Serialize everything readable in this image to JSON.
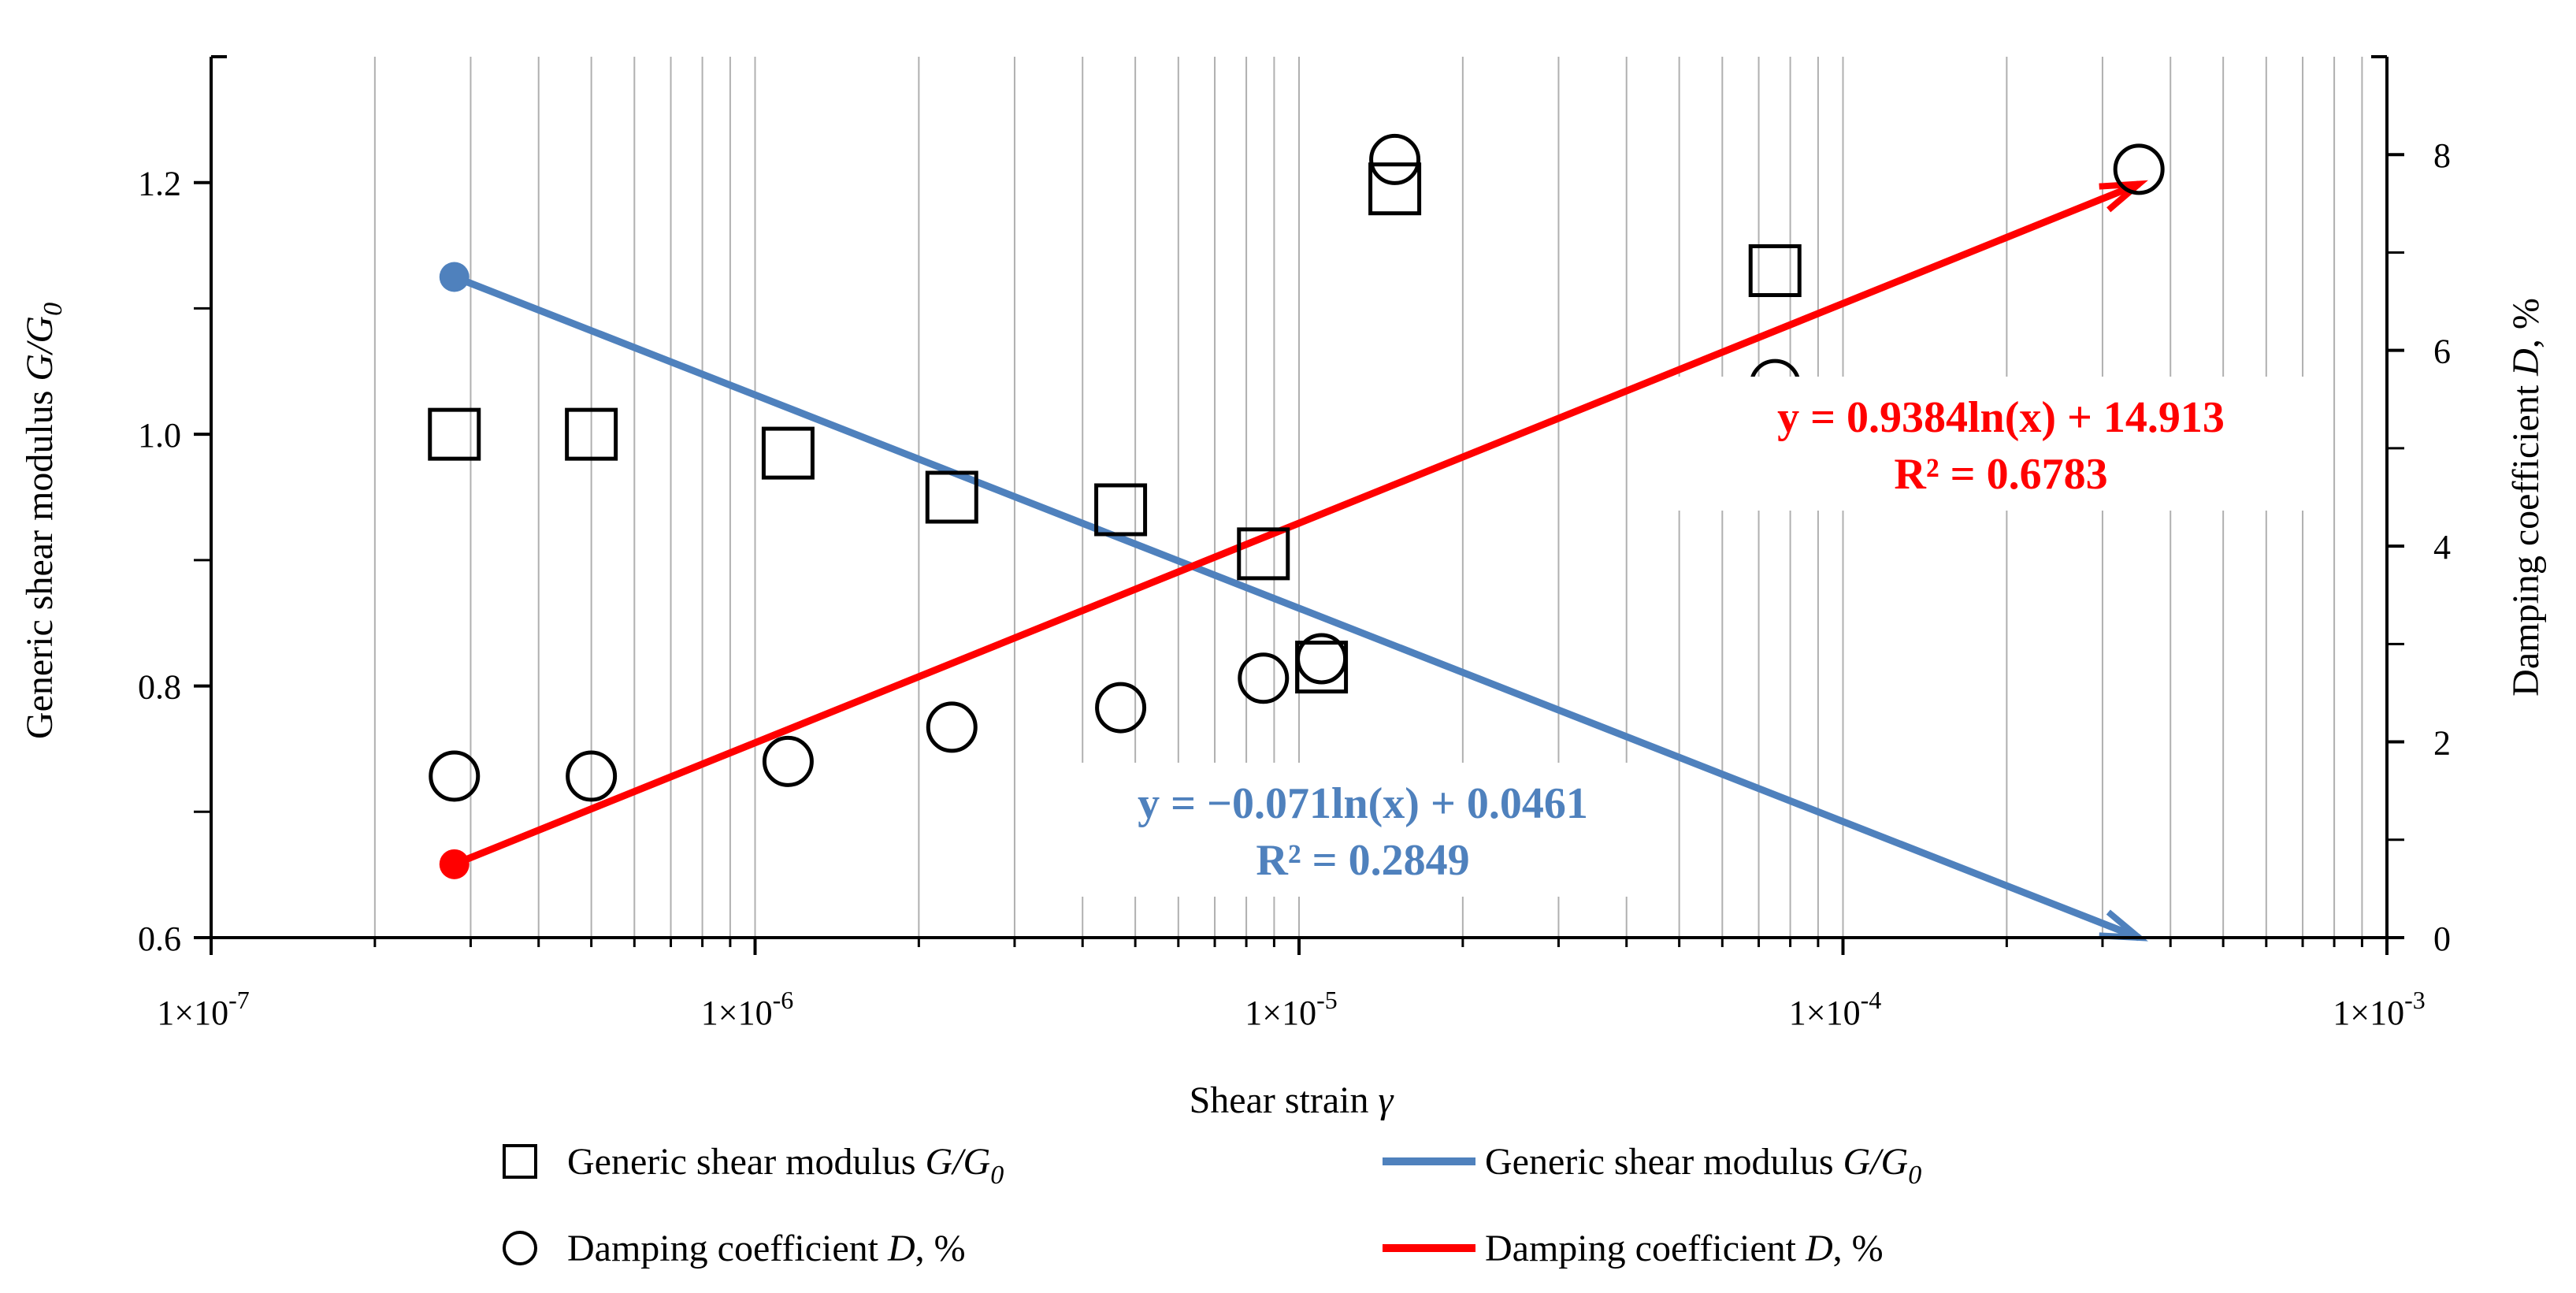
{
  "chart_data": {
    "type": "scatter",
    "title": "",
    "xlabel": "Shear strain",
    "xlabel_symbol": "γ",
    "x_scale": "log",
    "xlim": [
      1e-07,
      0.001
    ],
    "x_tick_labels": [
      {
        "value": 1e-07,
        "base": "1×10",
        "exp": "-7"
      },
      {
        "value": 1e-06,
        "base": "1×10",
        "exp": "-6"
      },
      {
        "value": 1e-05,
        "base": "1×10",
        "exp": "-5"
      },
      {
        "value": 0.0001,
        "base": "1×10",
        "exp": "-4"
      },
      {
        "value": 0.001,
        "base": "1×10",
        "exp": "-3"
      }
    ],
    "y_left": {
      "label": "Generic shear modulus",
      "label_symbol": "G/G",
      "label_sub": "0",
      "ylim": [
        0.6,
        1.3
      ],
      "tick_labels": [
        {
          "value": 0.6,
          "label": "0.6"
        },
        {
          "value": 0.8,
          "label": "0.8"
        },
        {
          "value": 1.0,
          "label": "1.0"
        },
        {
          "value": 1.2,
          "label": "1.2"
        }
      ],
      "minor_ticks": [
        0.7,
        0.9,
        1.1
      ]
    },
    "y_right": {
      "label": "Damping coefficient",
      "label_symbol": "D",
      "label_suffix": ", %",
      "ylim": [
        0,
        9
      ],
      "tick_labels": [
        {
          "value": 0,
          "label": "0"
        },
        {
          "value": 2,
          "label": "2"
        },
        {
          "value": 4,
          "label": "4"
        },
        {
          "value": 6,
          "label": "6"
        },
        {
          "value": 8,
          "label": "8"
        }
      ],
      "minor_ticks": [
        1,
        3,
        5,
        7
      ]
    },
    "series": [
      {
        "name": "Generic shear modulus G/G0",
        "kind": "points",
        "marker": "square",
        "axis": "left",
        "points": [
          {
            "x": 2.8e-07,
            "y": 1.0
          },
          {
            "x": 5e-07,
            "y": 1.0
          },
          {
            "x": 1.15e-06,
            "y": 0.985
          },
          {
            "x": 2.3e-06,
            "y": 0.95
          },
          {
            "x": 4.7e-06,
            "y": 0.94
          },
          {
            "x": 8.6e-06,
            "y": 0.905
          },
          {
            "x": 1.1e-05,
            "y": 0.815
          },
          {
            "x": 1.5e-05,
            "y": 1.195
          },
          {
            "x": 7.5e-05,
            "y": 1.13
          }
        ]
      },
      {
        "name": "Damping coefficient D, %",
        "kind": "points",
        "marker": "circle",
        "axis": "right",
        "points": [
          {
            "x": 2.8e-07,
            "y": 1.65
          },
          {
            "x": 5e-07,
            "y": 1.65
          },
          {
            "x": 1.15e-06,
            "y": 1.8
          },
          {
            "x": 2.3e-06,
            "y": 2.15
          },
          {
            "x": 4.7e-06,
            "y": 2.35
          },
          {
            "x": 8.6e-06,
            "y": 2.65
          },
          {
            "x": 1.1e-05,
            "y": 2.85
          },
          {
            "x": 1.5e-05,
            "y": 7.95
          },
          {
            "x": 7.5e-05,
            "y": 5.65
          },
          {
            "x": 0.00035,
            "y": 7.85
          }
        ]
      },
      {
        "name": "Generic shear modulus G/G0",
        "kind": "trend",
        "axis": "left",
        "color": "#4f81bd",
        "x_range": [
          2.8e-07,
          0.00035
        ],
        "y_range": [
          1.125,
          0.6
        ]
      },
      {
        "name": "Damping coefficient D, %",
        "kind": "trend",
        "axis": "right",
        "color": "#ff0000",
        "x_range": [
          2.8e-07,
          0.00035
        ],
        "y_range": [
          0.75,
          7.7
        ]
      }
    ],
    "annotations": [
      {
        "id": "blue-eq",
        "line1": "y = −0.071ln(x) + 0.0461",
        "line2": "R² = 0.2849",
        "color": "#4f81bd"
      },
      {
        "id": "red-eq",
        "line1": "y = 0.9384ln(x) + 14.913",
        "line2": "R² = 0.6783",
        "color": "#ff0000"
      }
    ],
    "legend": {
      "position": "bottom",
      "entries": [
        {
          "marker": "square",
          "text": "Generic shear modulus ",
          "symbol": "G/G",
          "sub": "0"
        },
        {
          "marker": "blue-line",
          "text": "Generic shear modulus ",
          "symbol": "G/G",
          "sub": "0"
        },
        {
          "marker": "circle",
          "text": "Damping coefficient ",
          "symbol": "D",
          "suffix": ", %"
        },
        {
          "marker": "red-line",
          "text": "Damping coefficient ",
          "symbol": "D",
          "suffix": ", %"
        }
      ]
    },
    "colors": {
      "blue": "#4f81bd",
      "red": "#ff0000",
      "grid": "#b0b0b0",
      "axis": "#000000"
    }
  }
}
